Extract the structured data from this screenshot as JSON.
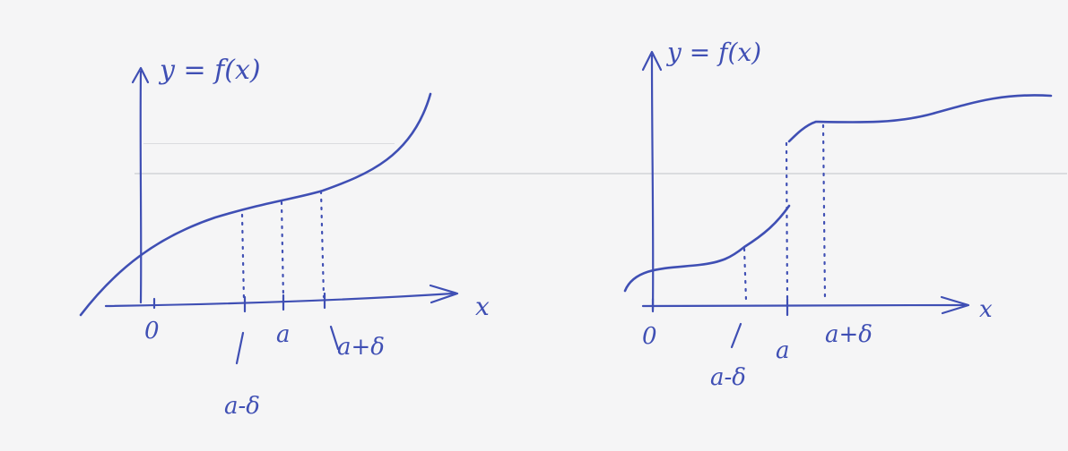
{
  "colors": {
    "ink": "#3f4fb4",
    "paper": "#f5f5f6",
    "edge": "#1f8a55",
    "bleed_through": "#b9bcc4"
  },
  "left_graph": {
    "function_label": "y = f(x)",
    "axis_x_label": "x",
    "origin_label": "0",
    "tick_left_label": "a-δ",
    "tick_mid_label": "a",
    "tick_right_label": "a+δ"
  },
  "right_graph": {
    "function_label": "y = f(x)",
    "axis_x_label": "x",
    "origin_label": "0",
    "tick_left_label": "a-δ",
    "tick_mid_label": "a",
    "tick_right_label": "a+δ"
  }
}
